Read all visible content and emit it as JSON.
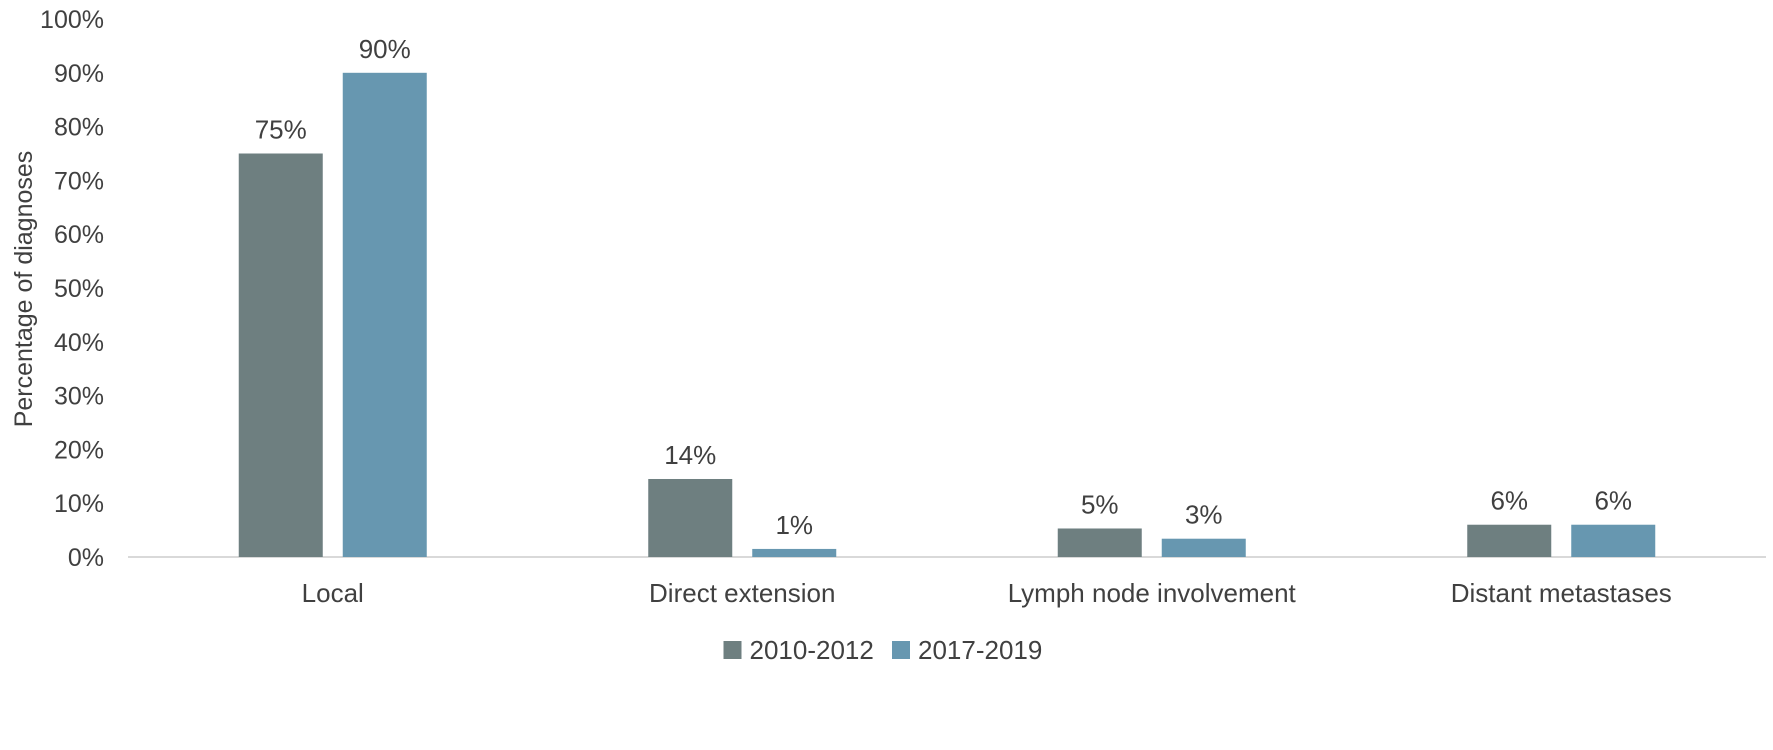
{
  "chart_data": {
    "type": "bar",
    "title": "",
    "xlabel": "",
    "ylabel": "Percentage of diagnoses",
    "ylim": [
      0,
      100
    ],
    "y_ticks": [
      "0%",
      "10%",
      "20%",
      "30%",
      "40%",
      "50%",
      "60%",
      "70%",
      "80%",
      "90%",
      "100%"
    ],
    "y_tick_values": [
      0,
      10,
      20,
      30,
      40,
      50,
      60,
      70,
      80,
      90,
      100
    ],
    "categories": [
      "Local",
      "Direct extension",
      "Lymph node involvement",
      "Distant metastases"
    ],
    "series": [
      {
        "name": "2010-2012",
        "color": "#6e7f80",
        "values": [
          75,
          14.5,
          5.3,
          6
        ],
        "labels": [
          "75%",
          "14%",
          "5%",
          "6%"
        ]
      },
      {
        "name": "2017-2019",
        "color": "#6797b0",
        "values": [
          90,
          1.5,
          3.4,
          6
        ],
        "labels": [
          "90%",
          "1%",
          "3%",
          "6%"
        ]
      }
    ],
    "grid": false,
    "legend_position": "bottom-center"
  }
}
